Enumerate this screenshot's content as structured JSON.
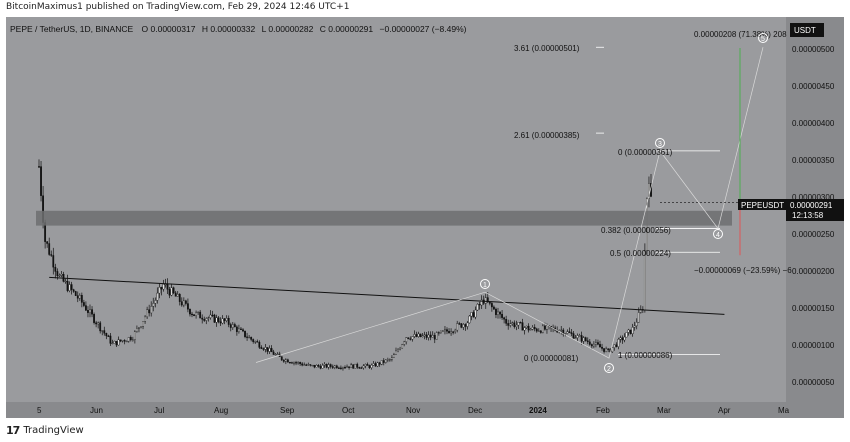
{
  "header": {
    "published": "BitcoinMaximus1 published on TradingView.com, Feb 29, 2024 12:46 UTC+1"
  },
  "legend": {
    "symbol": "PEPE / TetherUS, 1D, BINANCE",
    "o_label": "O",
    "o_value": "0.00000317",
    "h_label": "H",
    "h_value": "0.00000332",
    "l_label": "L",
    "l_value": "0.00000282",
    "c_label": "C",
    "c_value": "0.00000291",
    "change": "−0.00000027 (−8.49%)"
  },
  "price_axis": {
    "currency": "USDT",
    "ticks": [
      "0.00000500",
      "0.00000450",
      "0.00000400",
      "0.00000350",
      "0.00000300",
      "0.00000250",
      "0.00000200",
      "0.00000150",
      "0.00000100",
      "0.00000050"
    ],
    "ticker": "PEPEUSDT",
    "last_price": "0.00000291",
    "countdown": "12:13:58"
  },
  "time_axis": {
    "ticks": [
      "5",
      "Jun",
      "Jul",
      "Aug",
      "Sep",
      "Oct",
      "Nov",
      "Dec",
      "2024",
      "Feb",
      "Mar",
      "Apr",
      "Ma"
    ]
  },
  "annotations": {
    "fib_ext_361": "3.61 (0.00000501)",
    "fib_ext_261": "2.61 (0.00000385)",
    "fib_0_top": "0 (0.00000361)",
    "fib_0382": "0.382 (0.00000256)",
    "fib_05": "0.5 (0.00000224)",
    "fib_0_bottom": "0 (0.00000081)",
    "fib_1": "1 (0.00000086)",
    "target_gain": "0.00000208 (71.38%) 208",
    "target_loss": "−0.00000069 (−23.59%) −6",
    "wave_1": "1",
    "wave_2": "2",
    "wave_3": "3",
    "wave_4": "4",
    "wave_5": "5"
  },
  "footer": {
    "logo": "17",
    "brand": "TradingView"
  },
  "colors": {
    "plot_bg": "#9a9b9e",
    "candle": "#111111",
    "gain": "#4caf50",
    "loss": "#e05555",
    "zone": "#6d6e70"
  },
  "chart_data": {
    "type": "candlestick",
    "title": "PEPE / TetherUS, 1D, BINANCE",
    "xlabel": "",
    "ylabel": "",
    "ylim": [
      3e-07,
      5.5e-06
    ],
    "price_series": [
      {
        "date": "2023-05-05",
        "close": 3.4e-06
      },
      {
        "date": "2023-05-08",
        "close": 2.4e-06
      },
      {
        "date": "2023-05-15",
        "close": 1.9e-06
      },
      {
        "date": "2023-05-25",
        "close": 1.6e-06
      },
      {
        "date": "2023-06-10",
        "close": 1e-06
      },
      {
        "date": "2023-06-20",
        "close": 1.1e-06
      },
      {
        "date": "2023-07-01",
        "close": 1.6e-06
      },
      {
        "date": "2023-07-05",
        "close": 1.8e-06
      },
      {
        "date": "2023-07-20",
        "close": 1.4e-06
      },
      {
        "date": "2023-08-05",
        "close": 1.3e-06
      },
      {
        "date": "2023-08-15",
        "close": 1.1e-06
      },
      {
        "date": "2023-09-01",
        "close": 8e-07
      },
      {
        "date": "2023-09-15",
        "close": 7e-07
      },
      {
        "date": "2023-10-01",
        "close": 7e-07
      },
      {
        "date": "2023-10-15",
        "close": 7e-07
      },
      {
        "date": "2023-10-25",
        "close": 8e-07
      },
      {
        "date": "2023-11-01",
        "close": 1.1e-06
      },
      {
        "date": "2023-11-15",
        "close": 1.1e-06
      },
      {
        "date": "2023-12-01",
        "close": 1.3e-06
      },
      {
        "date": "2023-12-09",
        "close": 1.6e-06
      },
      {
        "date": "2023-12-20",
        "close": 1.3e-06
      },
      {
        "date": "2024-01-01",
        "close": 1.2e-06
      },
      {
        "date": "2024-01-15",
        "close": 1.2e-06
      },
      {
        "date": "2024-02-01",
        "close": 1e-06
      },
      {
        "date": "2024-02-08",
        "close": 9e-07
      },
      {
        "date": "2024-02-20",
        "close": 1.2e-06
      },
      {
        "date": "2024-02-25",
        "close": 1.5e-06
      },
      {
        "date": "2024-02-27",
        "close": 3e-06
      },
      {
        "date": "2024-02-28",
        "close": 3.3e-06
      },
      {
        "date": "2024-02-29",
        "close": 2.9e-06
      }
    ],
    "support_zone": [
      2.6e-06,
      2.8e-06
    ],
    "descending_trendline": [
      {
        "date": "2023-05-10",
        "value": 1.9e-06
      },
      {
        "date": "2024-04-05",
        "value": 1.4e-06
      }
    ],
    "fib_levels": [
      {
        "label": "3.61",
        "value": 5.01e-06
      },
      {
        "label": "2.61",
        "value": 3.85e-06
      },
      {
        "label": "0",
        "value": 3.61e-06
      },
      {
        "label": "0.382",
        "value": 2.56e-06
      },
      {
        "label": "0.5",
        "value": 2.24e-06
      },
      {
        "label": "0",
        "value": 8.1e-07
      },
      {
        "label": "1",
        "value": 8.6e-07
      }
    ],
    "wave_count": [
      {
        "label": "1",
        "date": "2023-12-09",
        "value": 1.7e-06
      },
      {
        "label": "2",
        "date": "2024-02-08",
        "value": 8.1e-07
      },
      {
        "label": "3",
        "date": "2024-02-29",
        "value": 3.61e-06
      },
      {
        "label": "4",
        "date": "2024-03-28",
        "value": 2.56e-06
      },
      {
        "label": "5",
        "date": "2024-04-28",
        "value": 5.01e-06
      }
    ],
    "last_price": 2.91e-06
  }
}
